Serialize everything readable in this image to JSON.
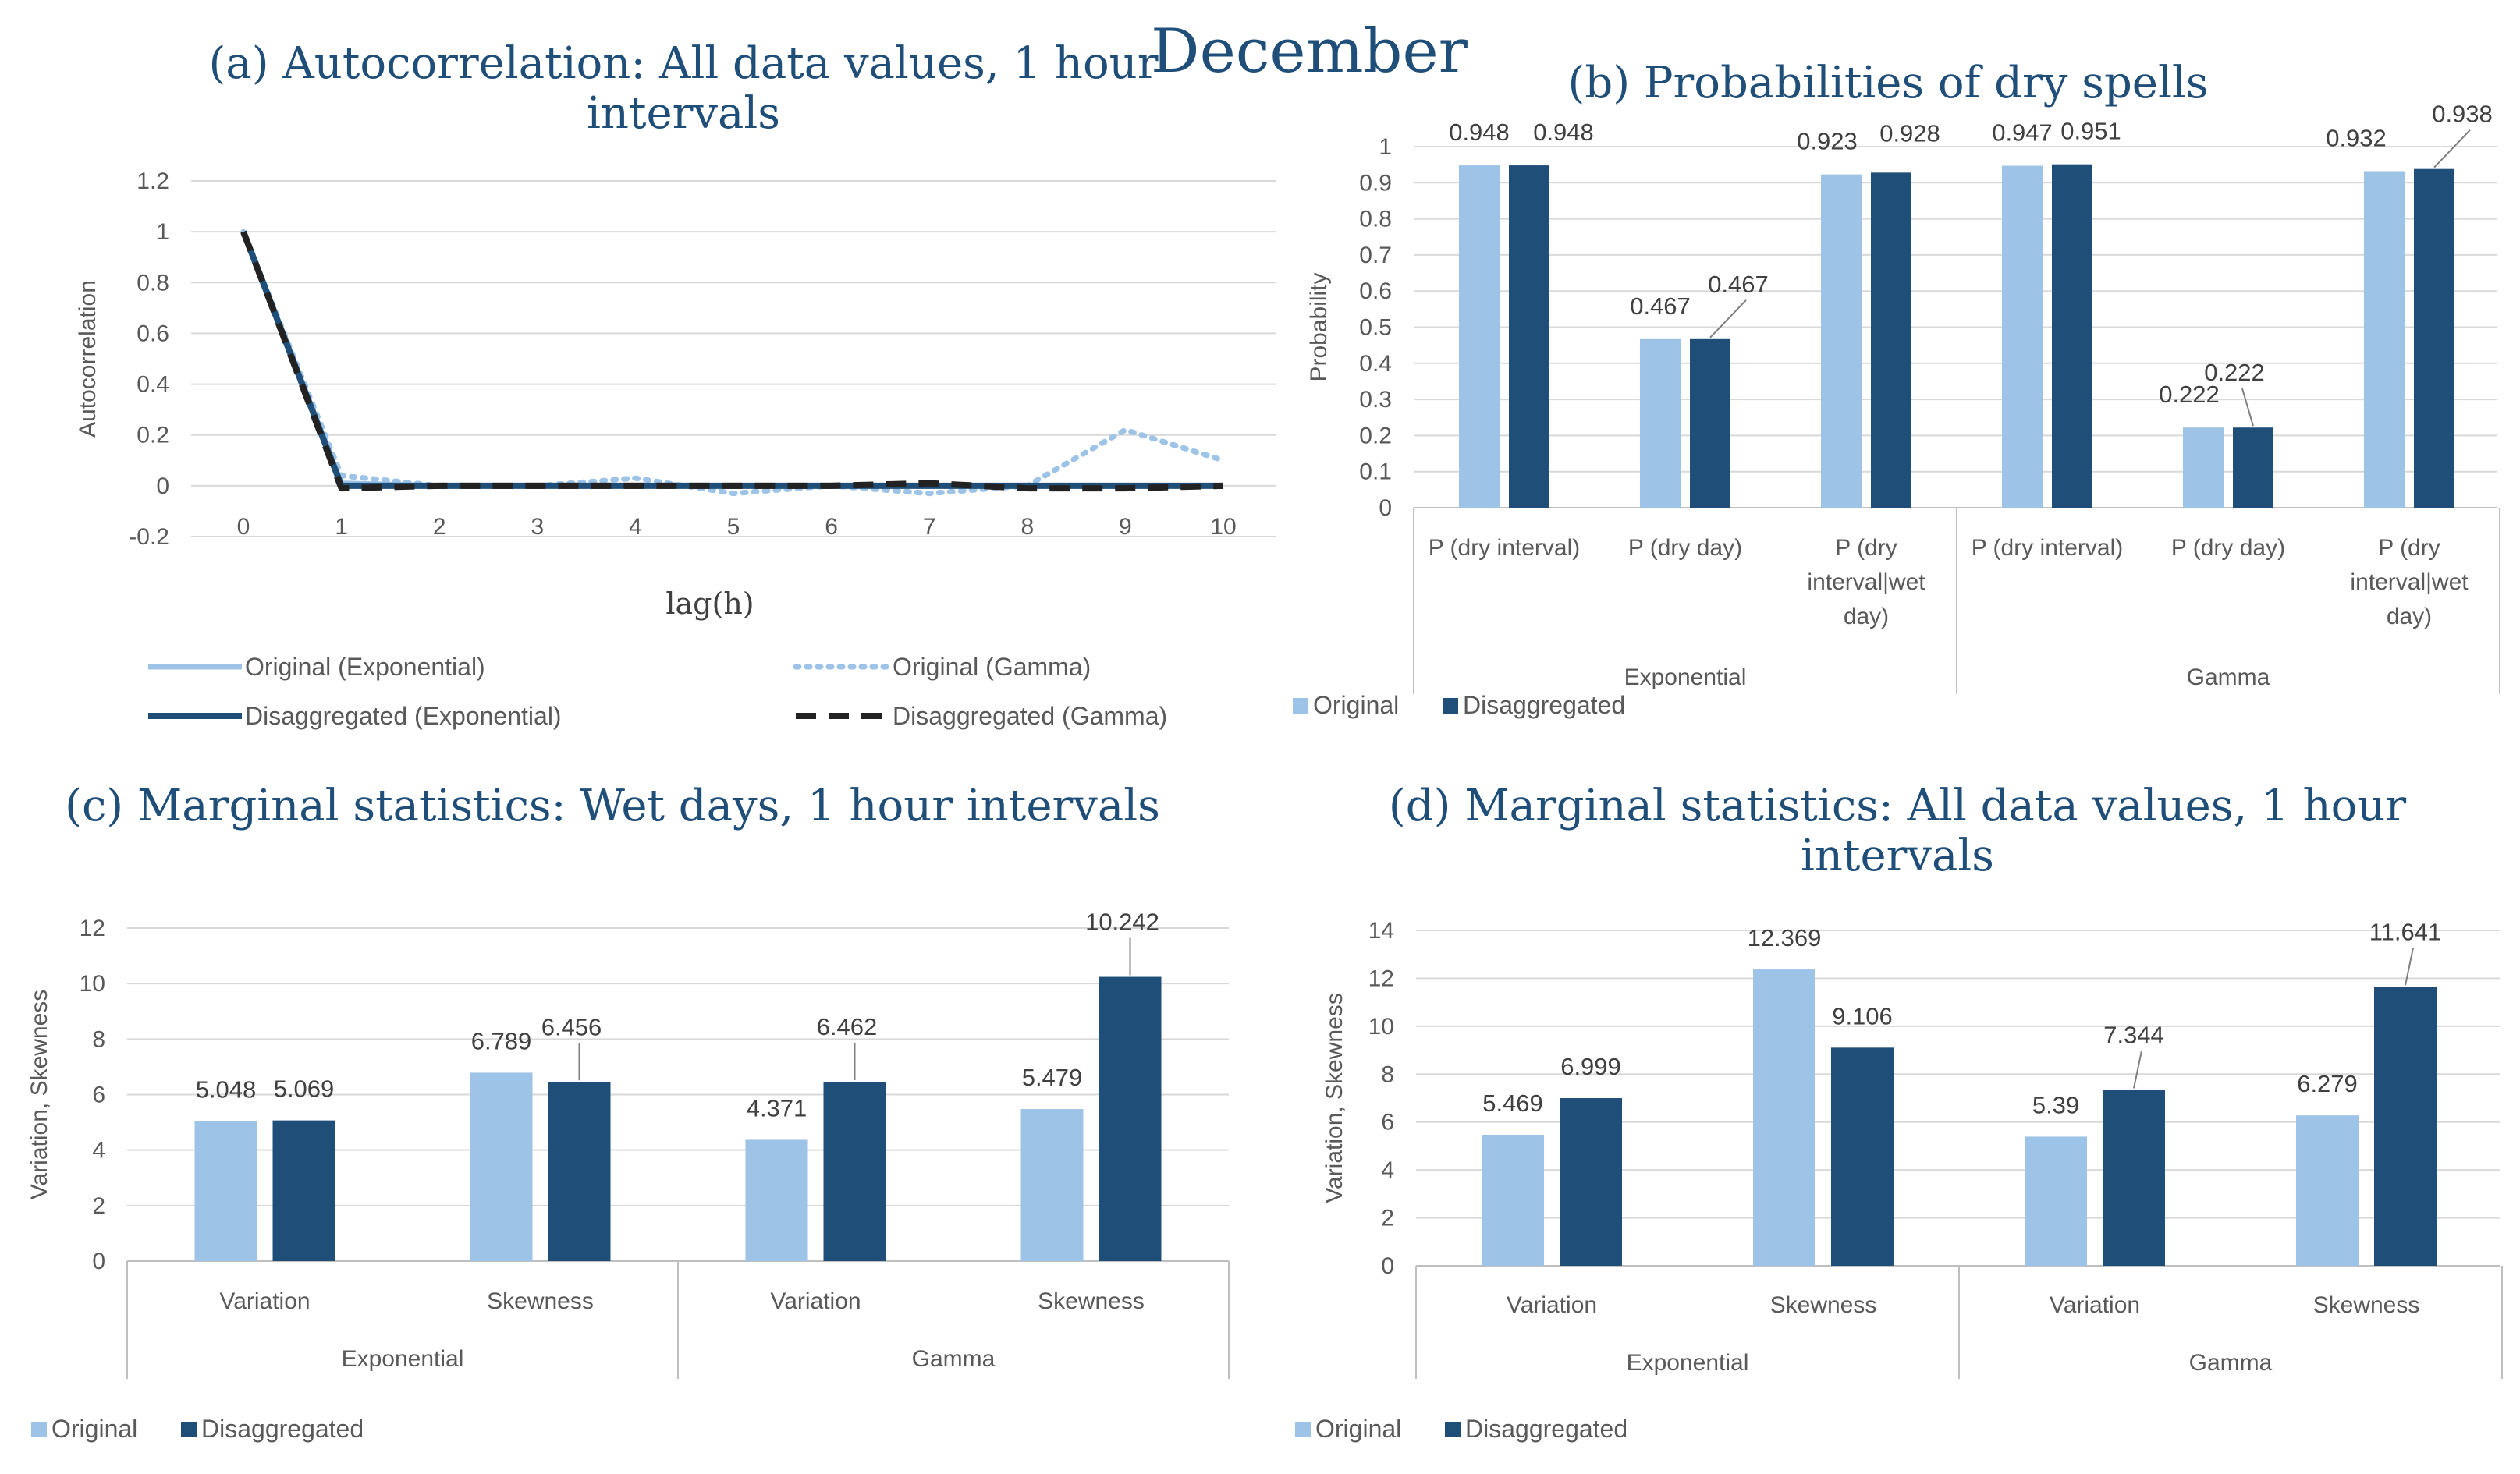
{
  "main_title": "December",
  "colors": {
    "original": "#9dc3e6",
    "disaggregated": "#1f4e79",
    "title": "#1f4e79"
  },
  "chart_data": [
    {
      "id": "a",
      "type": "line",
      "title_lines": [
        "(a) Autocorrelation: All data values, 1 hour",
        "intervals"
      ],
      "xlabel": "lag(h)",
      "ylabel": "Autocorrelation",
      "x": [
        0,
        1,
        2,
        3,
        4,
        5,
        6,
        7,
        8,
        9,
        10
      ],
      "ylim": [
        -0.2,
        1.2
      ],
      "yticks": [
        "-0.2",
        "0",
        "0.2",
        "0.4",
        "0.6",
        "0.8",
        "1",
        "1.2"
      ],
      "ytick_values": [
        -0.2,
        0,
        0.2,
        0.4,
        0.6,
        0.8,
        1,
        1.2
      ],
      "series": [
        {
          "name": "Original (Exponential)",
          "style": "solid-light",
          "values": [
            1,
            0.01,
            0,
            0,
            0,
            0,
            0,
            0,
            0,
            0,
            0
          ]
        },
        {
          "name": "Original (Gamma)",
          "style": "dotted-light",
          "values": [
            1,
            0.04,
            0,
            0,
            0.03,
            -0.03,
            0,
            -0.03,
            0,
            0.22,
            0.1
          ]
        },
        {
          "name": "Disaggregated (Exponential)",
          "style": "solid-dark",
          "values": [
            1,
            0,
            0,
            0,
            0,
            0,
            0,
            0,
            0,
            0,
            0
          ]
        },
        {
          "name": "Disaggregated (Gamma)",
          "style": "dashed-dark",
          "values": [
            1,
            -0.01,
            0,
            0,
            0,
            0,
            0,
            0.01,
            -0.01,
            -0.01,
            0
          ]
        }
      ]
    },
    {
      "id": "b",
      "type": "bar",
      "title_lines": [
        "(b) Probabilities of dry spells"
      ],
      "ylabel": "Probability",
      "ylim": [
        0,
        1
      ],
      "yticks": [
        "0",
        "0.1",
        "0.2",
        "0.3",
        "0.4",
        "0.5",
        "0.6",
        "0.7",
        "0.8",
        "0.9",
        "1"
      ],
      "ytick_values": [
        0,
        0.1,
        0.2,
        0.3,
        0.4,
        0.5,
        0.6,
        0.7,
        0.8,
        0.9,
        1
      ],
      "categories": [
        [
          "P (dry interval)"
        ],
        [
          "P (dry day)"
        ],
        [
          "P (dry",
          "interval|wet",
          "day)"
        ],
        [
          "P (dry interval)"
        ],
        [
          "P (dry day)"
        ],
        [
          "P (dry",
          "interval|wet",
          "day)"
        ]
      ],
      "groups": [
        "Exponential",
        "Gamma"
      ],
      "series": [
        {
          "name": "Original",
          "values": [
            0.948,
            0.467,
            0.923,
            0.947,
            0.222,
            0.932
          ]
        },
        {
          "name": "Disaggregated",
          "values": [
            0.948,
            0.467,
            0.928,
            0.951,
            0.222,
            0.938
          ]
        }
      ]
    },
    {
      "id": "c",
      "type": "bar",
      "title_lines": [
        "(c) Marginal statistics: Wet days, 1 hour intervals"
      ],
      "ylabel": "Variation, Skewness",
      "ylim": [
        0,
        12
      ],
      "yticks": [
        "0",
        "2",
        "4",
        "6",
        "8",
        "10",
        "12"
      ],
      "ytick_values": [
        0,
        2,
        4,
        6,
        8,
        10,
        12
      ],
      "categories": [
        [
          "Variation"
        ],
        [
          "Skewness"
        ],
        [
          "Variation"
        ],
        [
          "Skewness"
        ]
      ],
      "groups": [
        "Exponential",
        "Gamma"
      ],
      "series": [
        {
          "name": "Original",
          "values": [
            5.048,
            6.789,
            4.371,
            5.479
          ]
        },
        {
          "name": "Disaggregated",
          "values": [
            5.069,
            6.456,
            6.462,
            10.242
          ]
        }
      ]
    },
    {
      "id": "d",
      "type": "bar",
      "title_lines": [
        "(d) Marginal statistics: All data values, 1 hour",
        "intervals"
      ],
      "ylabel": "Variation, Skewness",
      "ylim": [
        0,
        14
      ],
      "yticks": [
        "0",
        "2",
        "4",
        "6",
        "8",
        "10",
        "12",
        "14"
      ],
      "ytick_values": [
        0,
        2,
        4,
        6,
        8,
        10,
        12,
        14
      ],
      "categories": [
        [
          "Variation"
        ],
        [
          "Skewness"
        ],
        [
          "Variation"
        ],
        [
          "Skewness"
        ]
      ],
      "groups": [
        "Exponential",
        "Gamma"
      ],
      "series": [
        {
          "name": "Original",
          "values": [
            5.469,
            12.369,
            5.39,
            6.279
          ]
        },
        {
          "name": "Disaggregated",
          "values": [
            6.999,
            9.106,
            7.344,
            11.641
          ]
        }
      ]
    }
  ]
}
